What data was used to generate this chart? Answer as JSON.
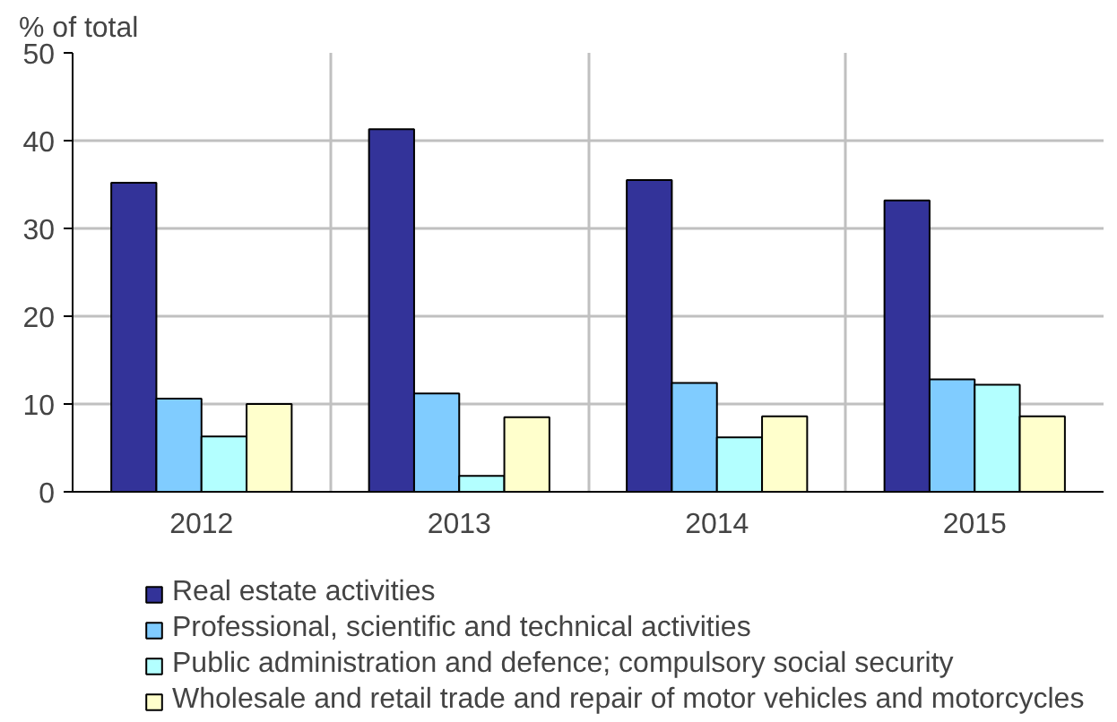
{
  "chart_data": {
    "type": "bar",
    "ylabel": "% of total",
    "categories": [
      "2012",
      "2013",
      "2014",
      "2015"
    ],
    "series": [
      {
        "name": "Real estate activities",
        "color": "#333399",
        "values": [
          35.2,
          41.3,
          35.5,
          33.2
        ]
      },
      {
        "name": "Professional, scientific and technical activities",
        "color": "#80ccff",
        "values": [
          10.6,
          11.2,
          12.4,
          12.8
        ]
      },
      {
        "name": "Public administration and defence; compulsory social security",
        "color": "#b3ffff",
        "values": [
          6.3,
          1.8,
          6.2,
          12.2
        ]
      },
      {
        "name": "Wholesale and retail trade and repair of motor vehicles and motorcycles",
        "color": "#ffffcc",
        "values": [
          10.0,
          8.5,
          8.6,
          8.6
        ]
      }
    ],
    "ylim": [
      0,
      50
    ],
    "yticks": [
      0,
      10,
      20,
      30,
      40,
      50
    ],
    "grid": true,
    "legend": "bottom"
  }
}
